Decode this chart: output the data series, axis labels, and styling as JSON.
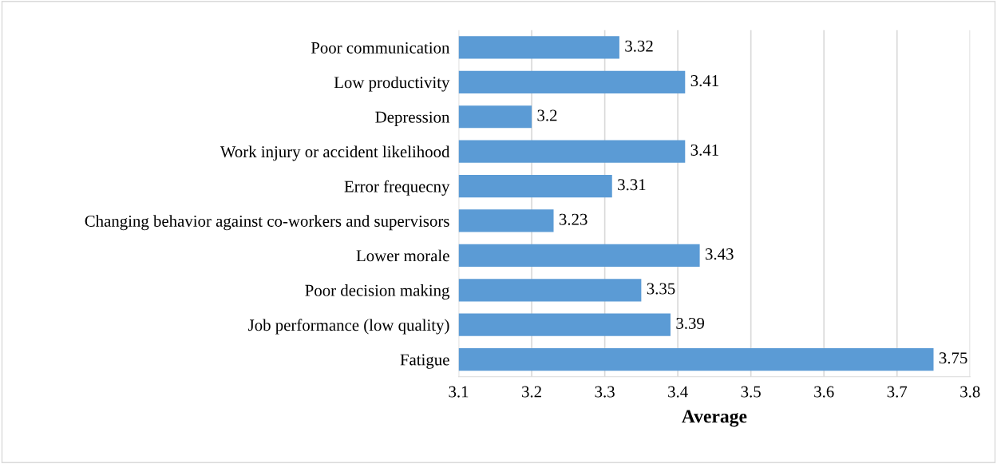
{
  "chart_data": {
    "type": "bar",
    "orientation": "horizontal",
    "xlabel": "Average",
    "categories": [
      "Poor communication",
      "Low productivity",
      "Depression",
      "Work injury or accident likelihood",
      "Error frequecny",
      "Changing behavior against co-workers and supervisors",
      "Lower morale",
      "Poor decision making",
      "Job performance (low quality)",
      "Fatigue"
    ],
    "values": [
      3.32,
      3.41,
      3.2,
      3.41,
      3.31,
      3.23,
      3.43,
      3.35,
      3.39,
      3.75
    ],
    "color": "#5b9bd5",
    "xlim": [
      3.1,
      3.8
    ],
    "xticks": [
      3.1,
      3.2,
      3.3,
      3.4,
      3.5,
      3.6,
      3.7,
      3.8
    ],
    "grid": "x",
    "data_labels": true
  }
}
